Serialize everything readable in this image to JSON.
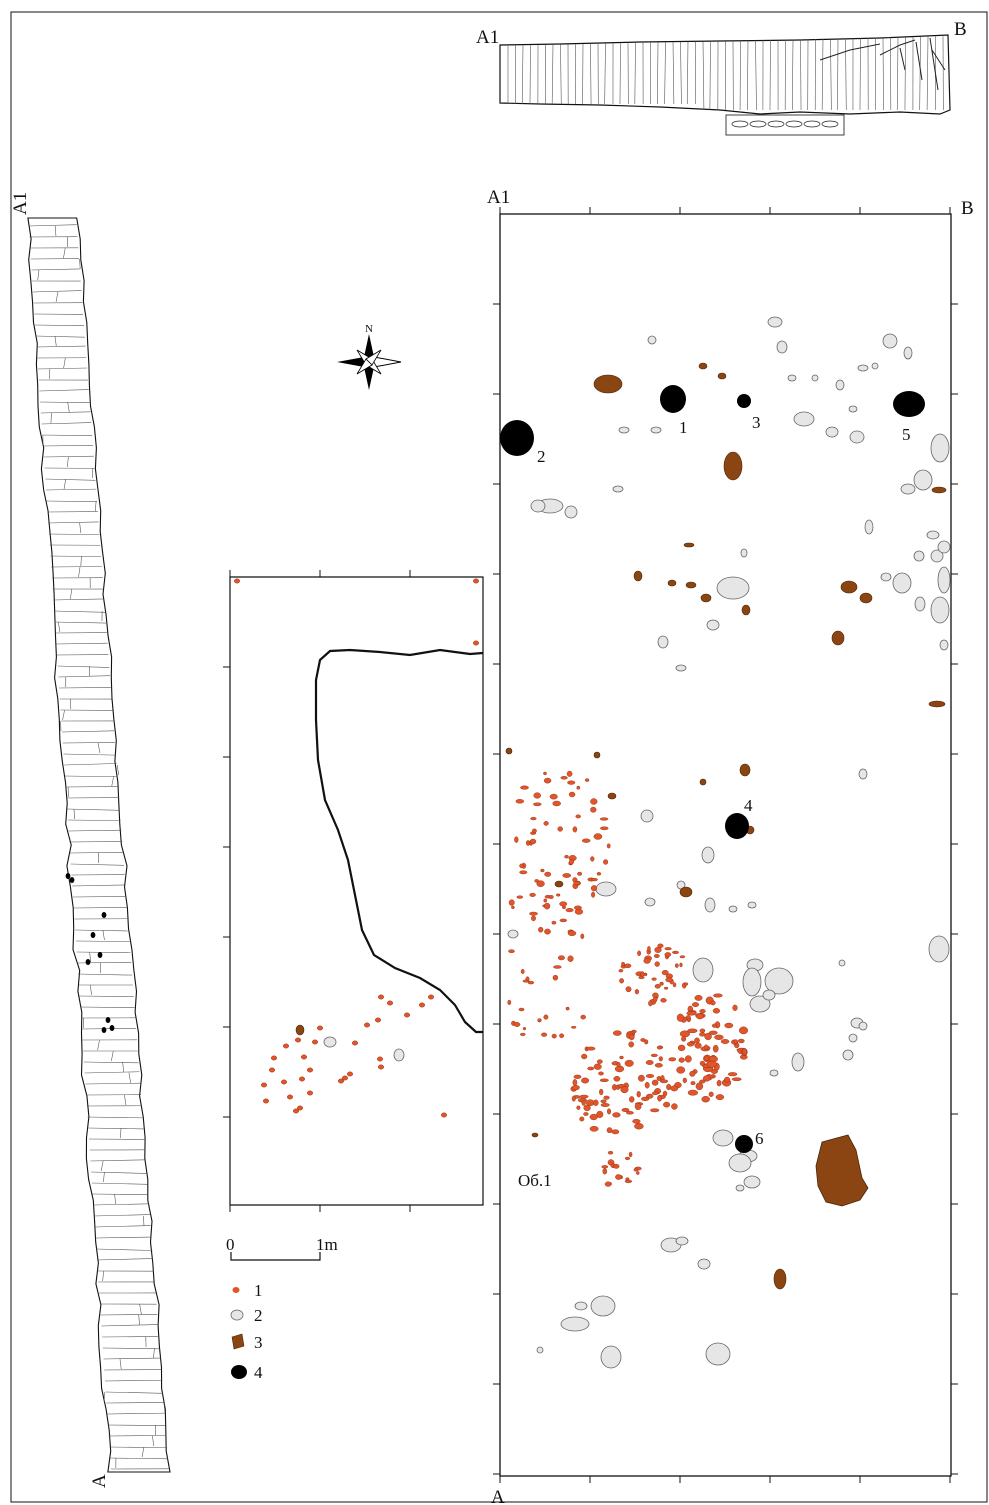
{
  "profile_top": {
    "label_left": "A1",
    "label_right": "B"
  },
  "profile_left": {
    "label_top": "A1",
    "label_bottom": "A"
  },
  "plan": {
    "corner_top_left": "A1",
    "corner_top_right": "B",
    "corner_bottom": "A",
    "feature_label": "Об.1",
    "pits": [
      {
        "id": "1",
        "label": "1"
      },
      {
        "id": "2",
        "label": "2"
      },
      {
        "id": "3",
        "label": "3"
      },
      {
        "id": "4",
        "label": "4"
      },
      {
        "id": "5",
        "label": "5"
      },
      {
        "id": "6",
        "label": "6"
      }
    ]
  },
  "north_arrow": {
    "label": "N"
  },
  "scale_bar": {
    "zero_label": "0",
    "end_label": "1m"
  },
  "legend": {
    "items": [
      {
        "label": "1",
        "symbol": "red-fragment",
        "color": "#e0552a"
      },
      {
        "label": "2",
        "symbol": "grey-stone",
        "color": "#e6e6e6"
      },
      {
        "label": "3",
        "symbol": "brown-piece",
        "color": "#8b4513"
      },
      {
        "label": "4",
        "symbol": "black-pit",
        "color": "#000000"
      }
    ]
  },
  "colors": {
    "red_fragment": "#e0552a",
    "stone": "#e6e6e6",
    "brown": "#8b4513",
    "pit": "#000000",
    "frame": "#111111"
  }
}
